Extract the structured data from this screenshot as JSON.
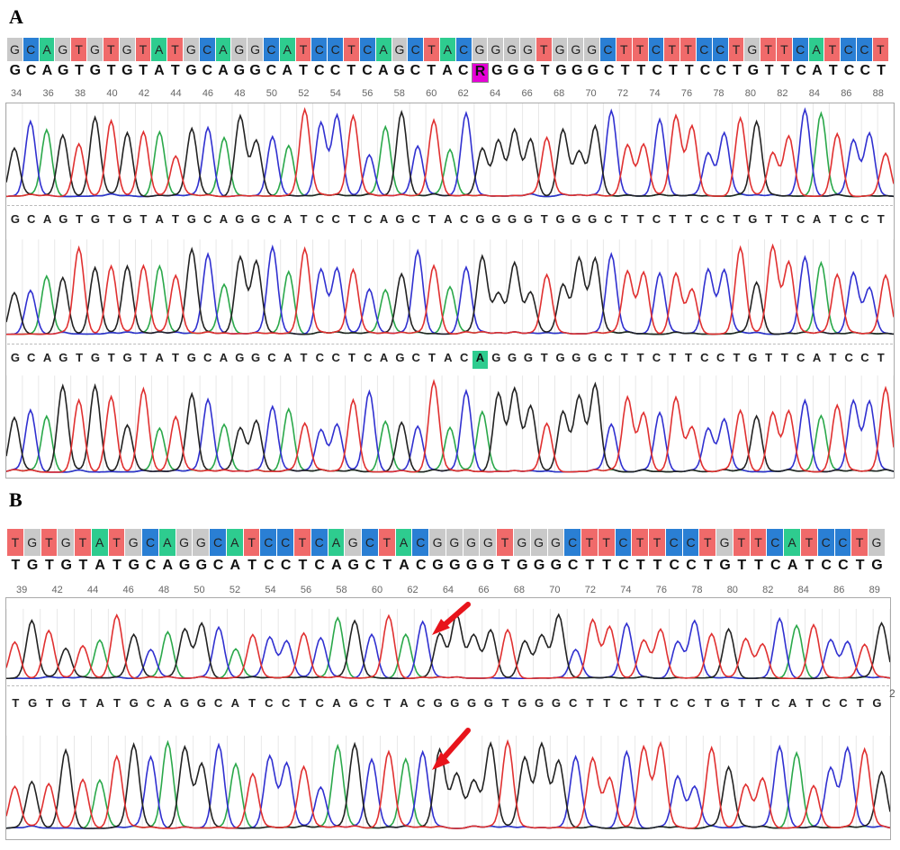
{
  "panel_a": {
    "label": "A",
    "header_bases": "GCAGTGTGTATGCAGGCATCCTCAGCTACGGGGTGGGCTTCTTCCTGTTCATCCT",
    "consensus": "GCAGTGTGTATGCAGGCATCCTCAGCTACRGGGTGGGCTTCTTCCTGTTCATCCT",
    "highlight_index": 29,
    "ruler": [
      "34",
      "36",
      "38",
      "40",
      "42",
      "44",
      "46",
      "48",
      "50",
      "52",
      "54",
      "56",
      "58",
      "60",
      "62",
      "64",
      "66",
      "68",
      "70",
      "72",
      "74",
      "76",
      "78",
      "80",
      "82",
      "84",
      "86",
      "88"
    ],
    "track2_seq": "GCAGTGTGTATGCAGGCATCCTCAGCTACGGGGTGGGCTTCTTCCTGTTCATCCT",
    "track3_seq": "GCAGTGTGTATGCAGGCATCCTCAGCTACAGGGTGGGCTTCTTCCTGTTCATCCT",
    "track3_mut_index": 29
  },
  "panel_b": {
    "label": "B",
    "header_bases": "TGTGTATGCAGGCATCCTCAGCTACGGGGTGGGCTTCTTCCTGTTCATCCTG",
    "consensus": "TGTGTATGCAGGCATCCTCAGCTACGGGGTGGGCTTCTTCCTGTTCATCCTG",
    "ruler": [
      "39",
      "42",
      "44",
      "46",
      "48",
      "50",
      "52",
      "54",
      "56",
      "58",
      "60",
      "62",
      "64",
      "66",
      "68",
      "70",
      "72",
      "74",
      "76",
      "78",
      "80",
      "82",
      "84",
      "86",
      "89"
    ],
    "track2_seq": "TGTGTATGCAGGCATCCTCAGCTACGGGGTGGGCTTCTTCCTGTTCATCCTG",
    "side_number": "2"
  },
  "colors": {
    "A": "#2ecc8f",
    "C": "#2a7fd4",
    "G": "#c9c9c9",
    "T": "#f06a6a",
    "trace_A": "#2aa84a",
    "trace_C": "#3030d0",
    "trace_G": "#222222",
    "trace_T": "#e03030",
    "arrow": "#e8141b"
  }
}
